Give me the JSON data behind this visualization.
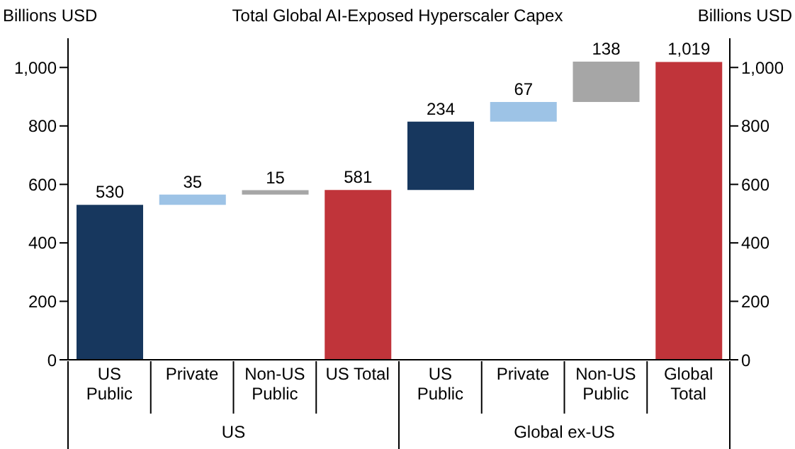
{
  "chart_data": {
    "type": "bar",
    "title": "Total Global AI-Exposed Hyperscaler Capex",
    "ylabel": "Billions USD",
    "y2label": "Billions USD",
    "categories": [
      "US Public",
      "Private",
      "Non-US Public",
      "US Total",
      "US Public",
      "Private",
      "Non-US Public",
      "Global Total"
    ],
    "values": [
      530,
      35,
      15,
      581,
      234,
      67,
      138,
      1019
    ],
    "base": [
      0,
      530,
      565,
      0,
      581,
      815,
      882,
      0
    ],
    "colors": [
      "#17375e",
      "#9dc3e6",
      "#a6a6a6",
      "#c0343a",
      "#17375e",
      "#9dc3e6",
      "#a6a6a6",
      "#c0343a"
    ],
    "value_labels": [
      "530",
      "35",
      "15",
      "581",
      "234",
      "67",
      "138",
      "1,019"
    ],
    "ylim": [
      0,
      1100
    ],
    "yticks": [
      0,
      {
        "value": 200,
        "label": "200"
      },
      400,
      600,
      800,
      {
        "value": 1000,
        "label": "1,000"
      }
    ],
    "y2lim": [
      0,
      1100
    ],
    "y2ticks": [
      0,
      200,
      400,
      600,
      800,
      {
        "value": 1000,
        "label": "1,000"
      }
    ],
    "annotations": [
      "US",
      "Global ex-US"
    ],
    "grid": false,
    "legend": false
  }
}
